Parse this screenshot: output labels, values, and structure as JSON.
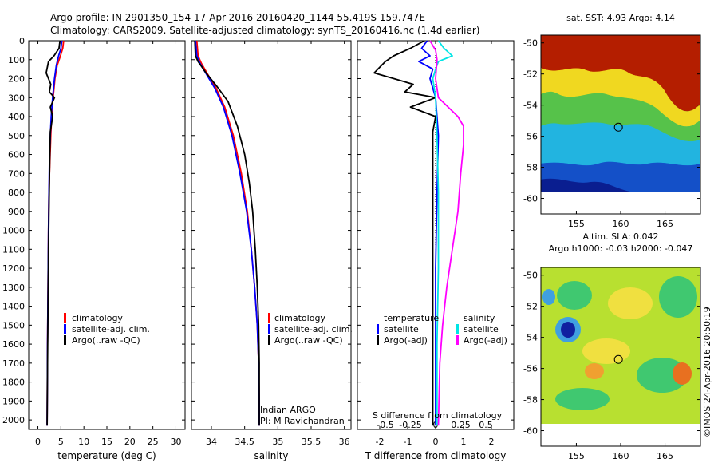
{
  "title": {
    "line1": "Argo profile: IN 2901350_154 17-Apr-2016 20160420_1144 55.419S 159.747E",
    "line2": "Climatology: CARS2009. Satellite-adjusted climatology: synTS_20160416.nc (1.4d earlier)"
  },
  "colors": {
    "climatology": "#ff0000",
    "satellite": "#0000ff",
    "argo": "#000000",
    "sal_satellite": "#00e5e5",
    "sal_argo": "#ff00ff"
  },
  "depth_axis": {
    "range": [
      0,
      2050
    ],
    "ticks": [
      "0",
      "100",
      "200",
      "300",
      "400",
      "500",
      "600",
      "700",
      "800",
      "900",
      "1000",
      "1100",
      "1200",
      "1300",
      "1400",
      "1500",
      "1600",
      "1700",
      "1800",
      "1900",
      "2000"
    ]
  },
  "chart_data": [
    {
      "type": "line",
      "id": "temperature",
      "xlabel": "temperature (deg C)",
      "xlim": [
        -2,
        32
      ],
      "xticks": [
        "0",
        "5",
        "10",
        "15",
        "20",
        "25",
        "30"
      ],
      "legend": {
        "placement": "bottom-center",
        "entries": [
          "climatology",
          "satellite-adj. clim.",
          "Argo(..raw -QC)"
        ]
      },
      "series": [
        {
          "name": "climatology",
          "color": "#ff0000",
          "points": [
            [
              5.6,
              0
            ],
            [
              5.4,
              40
            ],
            [
              4.9,
              80
            ],
            [
              4.2,
              130
            ],
            [
              3.7,
              200
            ],
            [
              3.3,
              300
            ],
            [
              3.0,
              400
            ],
            [
              2.8,
              500
            ],
            [
              2.6,
              650
            ],
            [
              2.4,
              800
            ],
            [
              2.3,
              1000
            ],
            [
              2.2,
              1300
            ],
            [
              2.1,
              1600
            ],
            [
              2.0,
              2030
            ]
          ]
        },
        {
          "name": "satellite-adj. clim.",
          "color": "#0000ff",
          "points": [
            [
              5.2,
              0
            ],
            [
              5.0,
              40
            ],
            [
              4.5,
              80
            ],
            [
              4.0,
              130
            ],
            [
              3.6,
              200
            ],
            [
              3.2,
              300
            ],
            [
              2.9,
              400
            ],
            [
              2.7,
              500
            ],
            [
              2.5,
              650
            ],
            [
              2.4,
              800
            ],
            [
              2.3,
              1000
            ],
            [
              2.2,
              1300
            ],
            [
              2.1,
              1600
            ],
            [
              2.0,
              2030
            ]
          ]
        },
        {
          "name": "Argo(..raw -QC)",
          "color": "#000000",
          "points": [
            [
              4.8,
              0
            ],
            [
              4.6,
              40
            ],
            [
              3.5,
              80
            ],
            [
              2.3,
              110
            ],
            [
              1.8,
              170
            ],
            [
              2.8,
              230
            ],
            [
              2.5,
              270
            ],
            [
              3.6,
              300
            ],
            [
              2.7,
              350
            ],
            [
              3.2,
              400
            ],
            [
              2.7,
              480
            ],
            [
              2.6,
              600
            ],
            [
              2.5,
              750
            ],
            [
              2.4,
              900
            ],
            [
              2.3,
              1100
            ],
            [
              2.2,
              1400
            ],
            [
              2.1,
              1700
            ],
            [
              2.0,
              2030
            ]
          ]
        }
      ]
    },
    {
      "type": "line",
      "id": "salinity",
      "xlabel": "salinity",
      "xlim": [
        33.7,
        36.1
      ],
      "xticks": [
        "34",
        "34.5",
        "35",
        "35.5",
        "36"
      ],
      "annotation": {
        "line1": "Indian ARGO",
        "line2": "PI: M Ravichandran"
      },
      "legend": {
        "placement": "bottom-right",
        "entries": [
          "climatology",
          "satellite-adj. clim.",
          "Argo(..raw -QC)"
        ]
      },
      "series": [
        {
          "name": "climatology",
          "color": "#ff0000",
          "points": [
            [
              33.78,
              0
            ],
            [
              33.8,
              80
            ],
            [
              33.85,
              120
            ],
            [
              33.95,
              180
            ],
            [
              34.07,
              250
            ],
            [
              34.2,
              350
            ],
            [
              34.33,
              500
            ],
            [
              34.45,
              700
            ],
            [
              34.54,
              900
            ],
            [
              34.6,
              1100
            ],
            [
              34.65,
              1300
            ],
            [
              34.69,
              1500
            ],
            [
              34.71,
              1700
            ],
            [
              34.72,
              1900
            ],
            [
              34.72,
              2030
            ]
          ]
        },
        {
          "name": "satellite-adj. clim.",
          "color": "#0000ff",
          "points": [
            [
              33.76,
              0
            ],
            [
              33.78,
              80
            ],
            [
              33.83,
              120
            ],
            [
              33.93,
              180
            ],
            [
              34.05,
              250
            ],
            [
              34.18,
              350
            ],
            [
              34.31,
              500
            ],
            [
              34.43,
              700
            ],
            [
              34.53,
              900
            ],
            [
              34.6,
              1100
            ],
            [
              34.65,
              1300
            ],
            [
              34.69,
              1500
            ],
            [
              34.71,
              1700
            ],
            [
              34.72,
              1900
            ],
            [
              34.72,
              2030
            ]
          ]
        },
        {
          "name": "Argo(..raw -QC)",
          "color": "#000000",
          "points": [
            [
              33.75,
              0
            ],
            [
              33.76,
              80
            ],
            [
              33.8,
              110
            ],
            [
              33.92,
              170
            ],
            [
              34.08,
              240
            ],
            [
              34.25,
              320
            ],
            [
              34.39,
              450
            ],
            [
              34.5,
              600
            ],
            [
              34.57,
              750
            ],
            [
              34.62,
              900
            ],
            [
              34.66,
              1100
            ],
            [
              34.69,
              1300
            ],
            [
              34.71,
              1500
            ],
            [
              34.72,
              1700
            ],
            [
              34.72,
              2030
            ]
          ]
        }
      ]
    },
    {
      "type": "line",
      "id": "difference",
      "xlabel": "T difference from climatology",
      "xlim": [
        -2.8,
        2.8
      ],
      "xticks": [
        "-2",
        "-1",
        "0",
        "1",
        "2"
      ],
      "top_axis": {
        "label": "S difference from climatology",
        "ticks": [
          "-0.5",
          "-0.25",
          "0",
          "0.25",
          "0.5"
        ]
      },
      "legend": {
        "placement": "bottom",
        "group1_title": "temperature",
        "group2_title": "salinity",
        "entries": [
          "satellite",
          "Argo(-adj)",
          "satellite",
          "Argo(-adj)"
        ]
      },
      "series": [
        {
          "name": "temperature satellite",
          "color": "#0000ff",
          "points": [
            [
              -0.3,
              0
            ],
            [
              -0.5,
              40
            ],
            [
              -0.2,
              80
            ],
            [
              -0.6,
              110
            ],
            [
              -0.1,
              150
            ],
            [
              -0.2,
              200
            ],
            [
              0.0,
              300
            ],
            [
              0.1,
              500
            ],
            [
              0.05,
              800
            ],
            [
              0.0,
              1200
            ],
            [
              0.0,
              1600
            ],
            [
              0.0,
              2030
            ]
          ]
        },
        {
          "name": "temperature Argo(-adj)",
          "color": "#000000",
          "points": [
            [
              -0.4,
              0
            ],
            [
              -0.9,
              40
            ],
            [
              -1.5,
              80
            ],
            [
              -1.8,
              110
            ],
            [
              -2.2,
              170
            ],
            [
              -0.8,
              230
            ],
            [
              -1.1,
              270
            ],
            [
              0.0,
              300
            ],
            [
              -0.9,
              350
            ],
            [
              0.0,
              400
            ],
            [
              -0.1,
              480
            ],
            [
              -0.1,
              600
            ],
            [
              -0.1,
              750
            ],
            [
              -0.1,
              900
            ],
            [
              -0.1,
              1100
            ],
            [
              -0.1,
              1400
            ],
            [
              -0.1,
              1700
            ],
            [
              -0.1,
              2030
            ]
          ]
        },
        {
          "name": "salinity satellite",
          "color": "#00e5e5",
          "points": [
            [
              0.1,
              0
            ],
            [
              0.3,
              40
            ],
            [
              0.6,
              80
            ],
            [
              0.1,
              110
            ],
            [
              0.0,
              150
            ],
            [
              -0.1,
              200
            ],
            [
              0.0,
              300
            ],
            [
              0.05,
              500
            ],
            [
              0.1,
              800
            ],
            [
              0.1,
              1200
            ],
            [
              0.05,
              1600
            ],
            [
              0.05,
              2030
            ]
          ]
        },
        {
          "name": "salinity Argo(-adj)",
          "color": "#ff00ff",
          "points": [
            [
              -0.2,
              0
            ],
            [
              0.0,
              50
            ],
            [
              0.05,
              100
            ],
            [
              0.0,
              200
            ],
            [
              0.1,
              300
            ],
            [
              0.8,
              400
            ],
            [
              1.0,
              450
            ],
            [
              1.0,
              550
            ],
            [
              0.9,
              700
            ],
            [
              0.8,
              900
            ],
            [
              0.6,
              1100
            ],
            [
              0.4,
              1300
            ],
            [
              0.25,
              1500
            ],
            [
              0.15,
              1700
            ],
            [
              0.1,
              2030
            ]
          ]
        }
      ]
    },
    {
      "type": "heatmap",
      "id": "sst-map",
      "title": "sat. SST: 4.93  Argo: 4.14",
      "xlim": [
        151,
        169
      ],
      "ylim": [
        -61,
        -49.5
      ],
      "xticks": [
        "155",
        "160",
        "165"
      ],
      "yticks": [
        "-50",
        "-52",
        "-54",
        "-56",
        "-58",
        "-60"
      ],
      "argo_position": {
        "lon": 159.747,
        "lat": -55.419
      }
    },
    {
      "type": "heatmap",
      "id": "sla-map",
      "title_line1": "Altim. SLA: 0.042",
      "title_line2": "Argo h1000: -0.03 h2000: -0.047",
      "xlim": [
        151,
        169
      ],
      "ylim": [
        -61,
        -49.5
      ],
      "xticks": [
        "155",
        "160",
        "165"
      ],
      "yticks": [
        "-50",
        "-52",
        "-54",
        "-56",
        "-58",
        "-60"
      ],
      "argo_position": {
        "lon": 159.747,
        "lat": -55.419
      }
    }
  ],
  "credit": "©IMOS 24-Apr-2016 20:50:19"
}
